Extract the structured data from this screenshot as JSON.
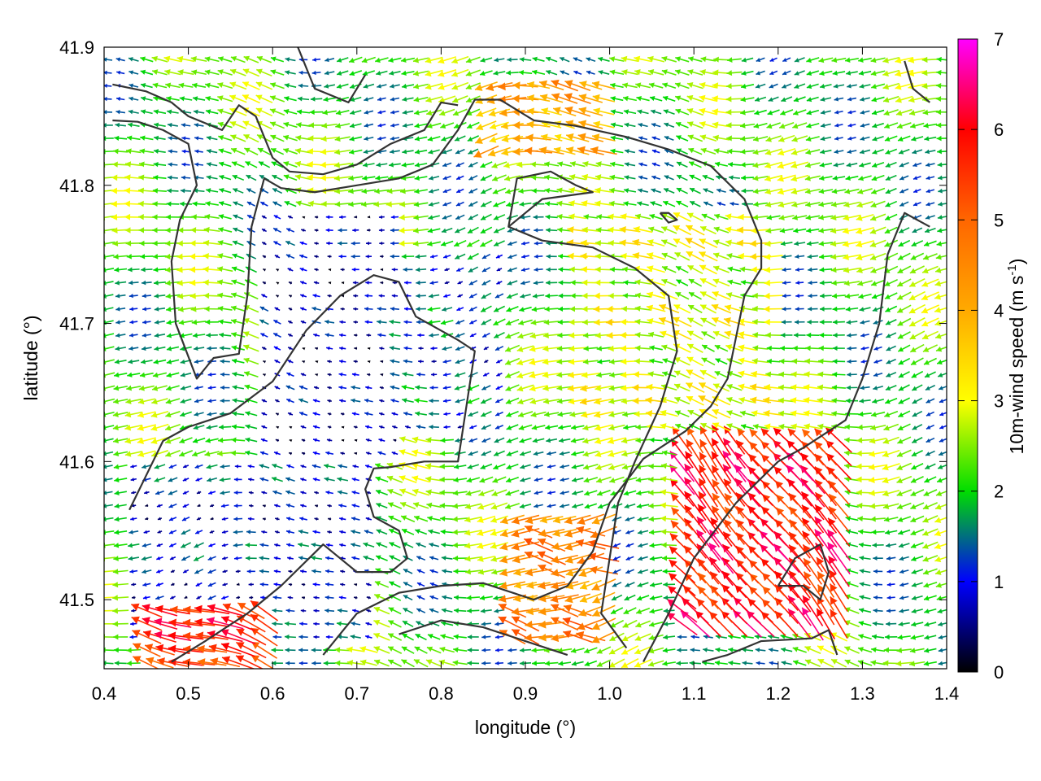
{
  "chart_data": {
    "type": "vector-field",
    "title": "",
    "xlabel": "longitude (°)",
    "ylabel": "latitude (°)",
    "xlim": [
      0.4,
      1.4
    ],
    "ylim": [
      41.45,
      41.9
    ],
    "x_ticks": [
      "0.4",
      "0.5",
      "0.6",
      "0.7",
      "0.8",
      "0.9",
      "1.0",
      "1.1",
      "1.2",
      "1.3",
      "1.4"
    ],
    "y_ticks": [
      "41.5",
      "41.6",
      "41.7",
      "41.8",
      "41.9"
    ],
    "colorbar": {
      "label_main": "10m-wind speed (m s",
      "label_sup": "-1",
      "label_close": ")",
      "range": [
        0,
        7
      ],
      "ticks": [
        "0",
        "1",
        "2",
        "3",
        "4",
        "5",
        "6",
        "7"
      ],
      "stops": [
        {
          "v": 0.0,
          "color": "#000000"
        },
        {
          "v": 1.0,
          "color": "#0000ff"
        },
        {
          "v": 2.0,
          "color": "#00dd00"
        },
        {
          "v": 3.0,
          "color": "#ffff00"
        },
        {
          "v": 4.0,
          "color": "#ffaa00"
        },
        {
          "v": 5.0,
          "color": "#ff6600"
        },
        {
          "v": 6.0,
          "color": "#ff0000"
        },
        {
          "v": 7.0,
          "color": "#ff00ff"
        }
      ]
    },
    "wind_grid": {
      "lon_step": 0.0155,
      "lat_step": 0.0095,
      "dominant_direction": "from east (westward flow)",
      "speed_regions": [
        {
          "name": "calm-basin-west",
          "lon": [
            0.58,
            0.75
          ],
          "lat": [
            41.6,
            41.78
          ],
          "speed": 0.7
        },
        {
          "name": "calm-basin-central",
          "lon": [
            0.74,
            0.88
          ],
          "lat": [
            41.62,
            41.75
          ],
          "speed": 1.3
        },
        {
          "name": "calm-southwest",
          "lon": [
            0.42,
            0.72
          ],
          "lat": [
            41.47,
            41.6
          ],
          "speed": 1.0
        },
        {
          "name": "moderate-plateau-east",
          "lon": [
            0.95,
            1.2
          ],
          "lat": [
            41.62,
            41.78
          ],
          "speed": 2.8
        },
        {
          "name": "strong-northeast-ridge",
          "lon": [
            0.85,
            1.0
          ],
          "lat": [
            41.82,
            41.88
          ],
          "speed": 4.0
        },
        {
          "name": "gust-southeast",
          "lon": [
            1.08,
            1.28
          ],
          "lat": [
            41.48,
            41.62
          ],
          "speed": 5.8
        },
        {
          "name": "gust-southwest-corner",
          "lon": [
            0.45,
            0.6
          ],
          "lat": [
            41.45,
            41.5
          ],
          "speed": 5.6
        },
        {
          "name": "coastal-southeast",
          "lon": [
            0.88,
            1.0
          ],
          "lat": [
            41.47,
            41.56
          ],
          "speed": 4.5
        }
      ]
    },
    "terrain_contours": [
      [
        [
          0.41,
          41.873
        ],
        [
          0.45,
          41.868
        ],
        [
          0.48,
          41.86
        ],
        [
          0.5,
          41.85
        ],
        [
          0.54,
          41.84
        ],
        [
          0.56,
          41.858
        ],
        [
          0.58,
          41.85
        ],
        [
          0.6,
          41.82
        ],
        [
          0.62,
          41.81
        ],
        [
          0.66,
          41.808
        ],
        [
          0.7,
          41.815
        ],
        [
          0.74,
          41.83
        ],
        [
          0.78,
          41.84
        ],
        [
          0.8,
          41.86
        ],
        [
          0.82,
          41.858
        ]
      ],
      [
        [
          0.41,
          41.847
        ],
        [
          0.44,
          41.846
        ],
        [
          0.47,
          41.84
        ],
        [
          0.5,
          41.83
        ],
        [
          0.51,
          41.8
        ],
        [
          0.49,
          41.775
        ],
        [
          0.48,
          41.745
        ],
        [
          0.485,
          41.7
        ],
        [
          0.51,
          41.66
        ],
        [
          0.53,
          41.675
        ],
        [
          0.56,
          41.678
        ],
        [
          0.57,
          41.72
        ],
        [
          0.575,
          41.77
        ],
        [
          0.59,
          41.805
        ],
        [
          0.61,
          41.798
        ],
        [
          0.65,
          41.795
        ],
        [
          0.7,
          41.8
        ],
        [
          0.75,
          41.805
        ],
        [
          0.79,
          41.815
        ],
        [
          0.82,
          41.84
        ],
        [
          0.84,
          41.862
        ],
        [
          0.87,
          41.862
        ],
        [
          0.91,
          41.847
        ],
        [
          0.96,
          41.843
        ],
        [
          1.02,
          41.835
        ],
        [
          1.07,
          41.826
        ],
        [
          1.12,
          41.814
        ],
        [
          1.16,
          41.79
        ],
        [
          1.18,
          41.76
        ],
        [
          1.18,
          41.74
        ],
        [
          1.16,
          41.72
        ],
        [
          1.15,
          41.69
        ],
        [
          1.14,
          41.66
        ],
        [
          1.12,
          41.64
        ],
        [
          1.09,
          41.622
        ],
        [
          1.04,
          41.602
        ],
        [
          1.0,
          41.57
        ],
        [
          0.98,
          41.535
        ],
        [
          0.95,
          41.51
        ],
        [
          0.91,
          41.5
        ],
        [
          0.85,
          41.512
        ],
        [
          0.8,
          41.51
        ],
        [
          0.75,
          41.505
        ],
        [
          0.7,
          41.49
        ],
        [
          0.66,
          41.46
        ]
      ],
      [
        [
          0.43,
          41.565
        ],
        [
          0.45,
          41.59
        ],
        [
          0.47,
          41.615
        ],
        [
          0.5,
          41.625
        ],
        [
          0.55,
          41.635
        ],
        [
          0.6,
          41.658
        ],
        [
          0.64,
          41.695
        ],
        [
          0.68,
          41.72
        ],
        [
          0.72,
          41.735
        ],
        [
          0.75,
          41.73
        ],
        [
          0.77,
          41.705
        ],
        [
          0.82,
          41.688
        ],
        [
          0.84,
          41.68
        ],
        [
          0.83,
          41.64
        ],
        [
          0.82,
          41.6
        ],
        [
          0.78,
          41.6
        ],
        [
          0.74,
          41.596
        ],
        [
          0.72,
          41.595
        ],
        [
          0.71,
          41.58
        ],
        [
          0.72,
          41.56
        ],
        [
          0.75,
          41.55
        ],
        [
          0.76,
          41.53
        ],
        [
          0.74,
          41.52
        ],
        [
          0.7,
          41.52
        ],
        [
          0.66,
          41.54
        ],
        [
          0.61,
          41.51
        ],
        [
          0.57,
          41.49
        ],
        [
          0.52,
          41.47
        ],
        [
          0.48,
          41.455
        ]
      ],
      [
        [
          0.88,
          41.77
        ],
        [
          0.92,
          41.79
        ],
        [
          0.98,
          41.795
        ],
        [
          0.96,
          41.8
        ],
        [
          0.93,
          41.81
        ],
        [
          0.89,
          41.805
        ],
        [
          0.88,
          41.77
        ],
        [
          0.92,
          41.76
        ],
        [
          0.98,
          41.755
        ],
        [
          1.03,
          41.74
        ],
        [
          1.07,
          41.72
        ],
        [
          1.08,
          41.68
        ],
        [
          1.06,
          41.64
        ],
        [
          1.03,
          41.6
        ],
        [
          1.01,
          41.57
        ],
        [
          1.0,
          41.53
        ],
        [
          0.99,
          41.49
        ],
        [
          1.02,
          41.465
        ]
      ],
      [
        [
          1.04,
          41.455
        ],
        [
          1.07,
          41.49
        ],
        [
          1.1,
          41.53
        ],
        [
          1.15,
          41.57
        ],
        [
          1.2,
          41.6
        ],
        [
          1.23,
          41.61
        ],
        [
          1.28,
          41.63
        ],
        [
          1.3,
          41.66
        ],
        [
          1.32,
          41.7
        ],
        [
          1.33,
          41.75
        ],
        [
          1.35,
          41.78
        ],
        [
          1.38,
          41.77
        ]
      ],
      [
        [
          1.2,
          41.51
        ],
        [
          1.23,
          41.51
        ],
        [
          1.25,
          41.5
        ],
        [
          1.26,
          41.52
        ],
        [
          1.25,
          41.54
        ],
        [
          1.22,
          41.53
        ],
        [
          1.2,
          41.51
        ]
      ],
      [
        [
          1.11,
          41.455
        ],
        [
          1.14,
          41.46
        ],
        [
          1.18,
          41.47
        ],
        [
          1.24,
          41.472
        ],
        [
          1.26,
          41.478
        ],
        [
          1.27,
          41.46
        ]
      ],
      [
        [
          0.75,
          41.475
        ],
        [
          0.8,
          41.485
        ],
        [
          0.85,
          41.48
        ],
        [
          0.9,
          41.47
        ],
        [
          0.95,
          41.46
        ]
      ],
      [
        [
          1.06,
          41.78
        ],
        [
          1.07,
          41.773
        ],
        [
          1.08,
          41.775
        ],
        [
          1.07,
          41.78
        ],
        [
          1.06,
          41.78
        ]
      ],
      [
        [
          1.35,
          41.89
        ],
        [
          1.36,
          41.87
        ],
        [
          1.38,
          41.86
        ]
      ],
      [
        [
          0.63,
          41.9
        ],
        [
          0.65,
          41.87
        ],
        [
          0.69,
          41.86
        ],
        [
          0.71,
          41.88
        ]
      ]
    ]
  }
}
